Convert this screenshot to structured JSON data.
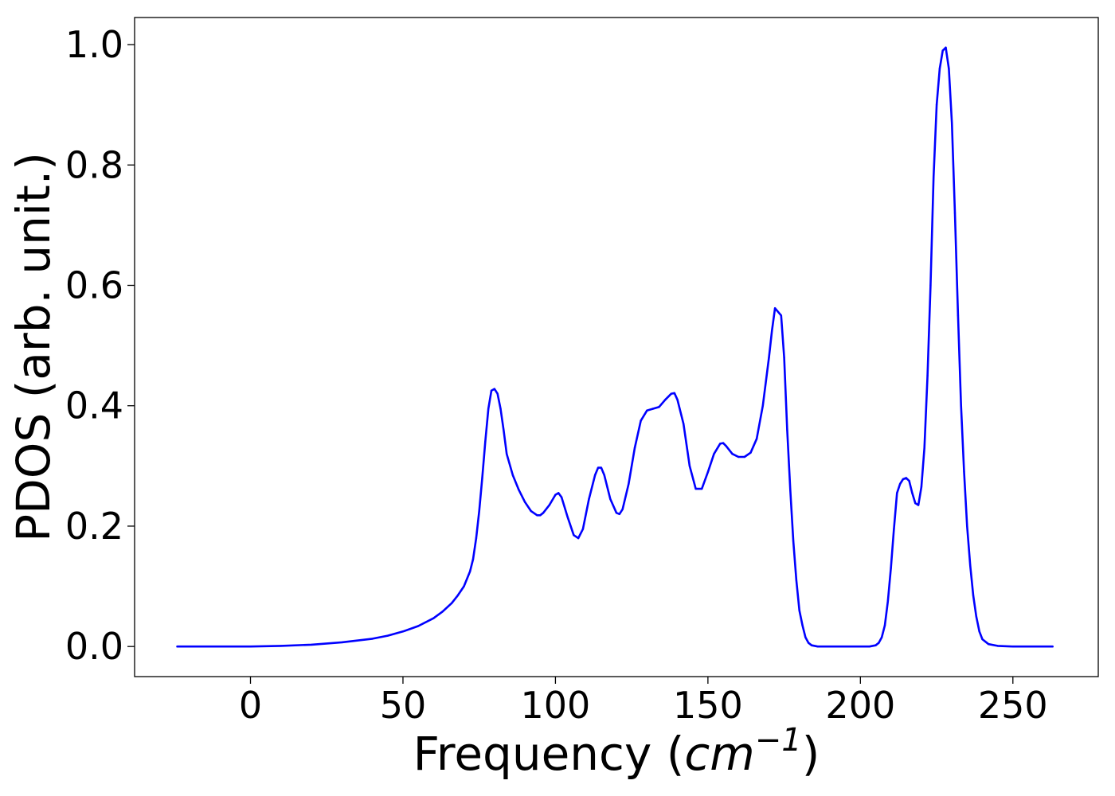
{
  "chart_data": {
    "type": "line",
    "title": "",
    "xlabel": "Frequency (cm⁻¹)",
    "xlabel_parts": {
      "prefix": "Frequency (",
      "unit_base": "cm",
      "unit_exponent": "−1",
      "suffix": ")"
    },
    "ylabel": "PDOS (arb. unit.)",
    "xlim": [
      -38,
      278
    ],
    "ylim": [
      -0.05,
      1.045
    ],
    "xticks": [
      0,
      50,
      100,
      150,
      200,
      250
    ],
    "xtick_labels": [
      "0",
      "50",
      "100",
      "150",
      "200",
      "250"
    ],
    "yticks": [
      0.0,
      0.2,
      0.4,
      0.6,
      0.8,
      1.0
    ],
    "ytick_labels": [
      "0.0",
      "0.2",
      "0.4",
      "0.6",
      "0.8",
      "1.0"
    ],
    "grid": false,
    "legend": false,
    "series": [
      {
        "color": "#0000ff",
        "x": [
          -24,
          -10,
          0,
          10,
          20,
          30,
          40,
          45,
          50,
          55,
          60,
          63,
          66,
          68,
          70,
          72,
          73,
          74,
          75,
          76,
          77,
          78,
          79,
          80,
          81,
          82,
          83,
          84,
          86,
          88,
          90,
          92,
          94,
          95,
          96,
          98,
          100,
          101,
          102,
          104,
          106,
          107.5,
          109,
          111,
          113,
          114,
          115,
          116,
          118,
          120,
          121,
          122,
          124,
          126,
          128,
          130,
          132,
          134,
          136,
          138,
          139,
          140,
          142,
          144,
          146,
          148,
          150,
          152,
          154,
          155,
          156,
          158,
          160,
          162,
          164,
          166,
          168,
          170,
          171,
          172,
          174,
          175,
          176,
          177,
          178,
          179,
          180,
          181,
          182,
          183,
          184,
          186,
          190,
          200,
          203,
          205,
          206,
          207,
          208,
          209,
          210,
          211,
          212,
          213,
          214,
          215,
          216,
          217,
          218,
          219,
          220,
          221,
          222,
          223,
          224,
          225,
          226,
          227,
          228,
          229,
          230,
          231,
          232,
          233,
          234,
          235,
          236,
          237,
          238,
          239,
          240,
          242,
          245,
          250,
          263
        ],
        "values": [
          0.0,
          0.0,
          0.0,
          0.001,
          0.003,
          0.007,
          0.013,
          0.018,
          0.025,
          0.034,
          0.047,
          0.058,
          0.072,
          0.085,
          0.1,
          0.125,
          0.145,
          0.18,
          0.225,
          0.28,
          0.34,
          0.395,
          0.425,
          0.428,
          0.42,
          0.395,
          0.36,
          0.32,
          0.285,
          0.26,
          0.24,
          0.225,
          0.218,
          0.218,
          0.222,
          0.235,
          0.252,
          0.255,
          0.248,
          0.215,
          0.185,
          0.18,
          0.195,
          0.245,
          0.285,
          0.297,
          0.297,
          0.285,
          0.245,
          0.222,
          0.22,
          0.228,
          0.27,
          0.33,
          0.375,
          0.392,
          0.395,
          0.398,
          0.41,
          0.42,
          0.421,
          0.41,
          0.37,
          0.3,
          0.262,
          0.262,
          0.29,
          0.32,
          0.337,
          0.338,
          0.333,
          0.32,
          0.315,
          0.315,
          0.322,
          0.345,
          0.4,
          0.48,
          0.525,
          0.562,
          0.55,
          0.48,
          0.36,
          0.26,
          0.175,
          0.11,
          0.06,
          0.035,
          0.015,
          0.006,
          0.002,
          0.0,
          0.0,
          0.0,
          0.0,
          0.002,
          0.006,
          0.015,
          0.035,
          0.075,
          0.13,
          0.195,
          0.255,
          0.27,
          0.278,
          0.28,
          0.275,
          0.255,
          0.238,
          0.235,
          0.265,
          0.33,
          0.45,
          0.6,
          0.78,
          0.9,
          0.96,
          0.99,
          0.995,
          0.96,
          0.87,
          0.72,
          0.55,
          0.4,
          0.29,
          0.2,
          0.135,
          0.085,
          0.05,
          0.025,
          0.012,
          0.004,
          0.001,
          0.0,
          0.0
        ]
      }
    ]
  }
}
